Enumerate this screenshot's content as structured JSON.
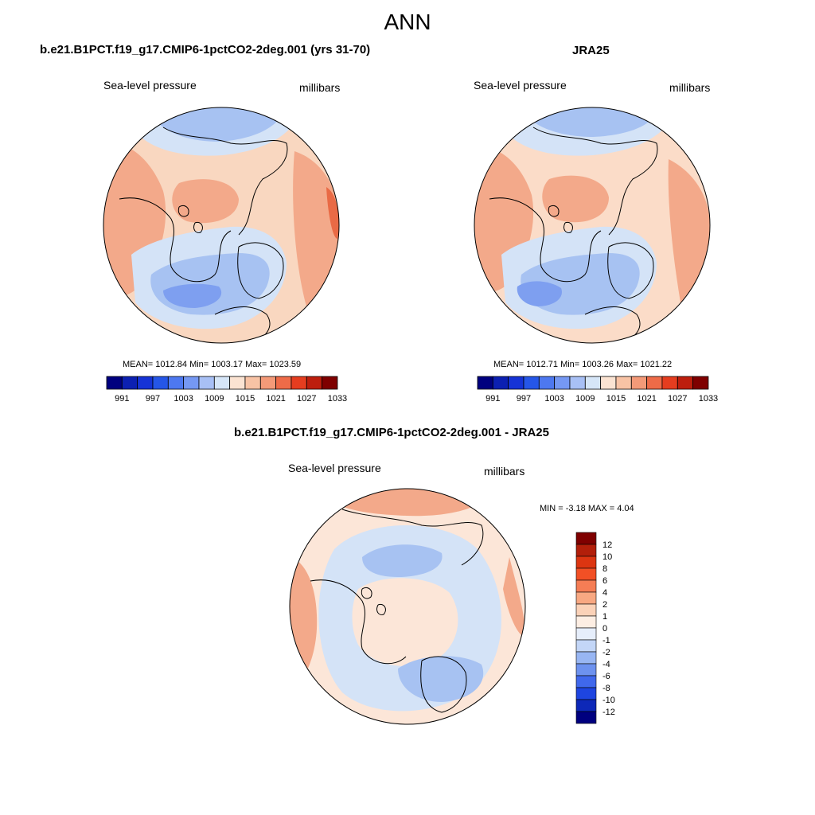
{
  "page": {
    "title": "ANN"
  },
  "panels": [
    {
      "id": "model",
      "title": "b.e21.B1PCT.f19_g17.CMIP6-1pctCO2-2deg.001 (yrs 31-70)",
      "variable_label": "Sea-level pressure",
      "units_label": "millibars",
      "stats_text": "MEAN= 1012.84  Min= 1003.17  Max= 1023.59",
      "mean": 1012.84,
      "min": 1003.17,
      "max": 1023.59
    },
    {
      "id": "obs",
      "title": "JRA25",
      "variable_label": "Sea-level pressure",
      "units_label": "millibars",
      "stats_text": "MEAN= 1012.71  Min= 1003.26  Max= 1021.22",
      "mean": 1012.71,
      "min": 1003.26,
      "max": 1021.22
    },
    {
      "id": "diff",
      "title": "b.e21.B1PCT.f19_g17.CMIP6-1pctCO2-2deg.001 - JRA25",
      "variable_label": "Sea-level pressure",
      "units_label": "millibars",
      "stats_text": "MIN =  -3.18 MAX =   4.04",
      "min": -3.18,
      "max": 4.04
    }
  ],
  "colorbars": {
    "slp": {
      "orientation": "horizontal",
      "colors": [
        "#00007f",
        "#0c20b2",
        "#1533d6",
        "#2556e8",
        "#4d78f0",
        "#7598f3",
        "#a8c0f5",
        "#d6e6f8",
        "#fbe3d2",
        "#f8c3a5",
        "#f49a78",
        "#ee6b48",
        "#e53d1f",
        "#bd1e0d",
        "#7f0000"
      ],
      "tick_labels": [
        "991",
        "997",
        "1003",
        "1009",
        "1015",
        "1021",
        "1027",
        "1033"
      ]
    },
    "diff": {
      "orientation": "vertical",
      "colors_top_to_bottom": [
        "#7f0000",
        "#b21f0a",
        "#dc3511",
        "#f25025",
        "#f57d55",
        "#f8a882",
        "#fbd2b8",
        "#fdeee3",
        "#e6eefb",
        "#c3d6f7",
        "#98b6f3",
        "#6d92ef",
        "#4068ec",
        "#1e45e0",
        "#0d28b8",
        "#00007f"
      ],
      "tick_labels": [
        "12",
        "10",
        "8",
        "6",
        "4",
        "2",
        "1",
        "0",
        "-1",
        "-2",
        "-4",
        "-6",
        "-8",
        "-10",
        "-12"
      ]
    }
  },
  "map_colors": {
    "land_outline": "#000000",
    "model_background": "#f9d7c0",
    "obs_background": "#fbdcc8",
    "diff_background": "#fce6d8",
    "low_pressure_light": "#d4e3f7",
    "low_pressure_mid": "#a7c2f2",
    "low_pressure_deep": "#7e9ff0",
    "high_pressure_mid": "#f3a98a",
    "high_pressure_deep": "#e96a45"
  }
}
